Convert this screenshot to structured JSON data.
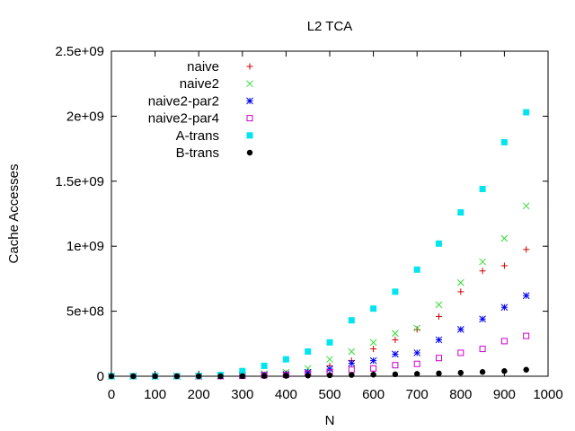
{
  "chart_data": {
    "type": "scatter",
    "title": "L2 TCA",
    "xlabel": "N",
    "ylabel": "Cache Accesses",
    "xlim": [
      0,
      1000
    ],
    "ylim": [
      0,
      2500000000
    ],
    "xticks": [
      0,
      100,
      200,
      300,
      400,
      500,
      600,
      700,
      800,
      900,
      1000
    ],
    "xtick_labels": [
      "0",
      "100",
      "200",
      "300",
      "400",
      "500",
      "600",
      "700",
      "800",
      "900",
      "1000"
    ],
    "yticks": [
      0,
      500000000,
      1000000000,
      1500000000,
      2000000000,
      2500000000
    ],
    "ytick_labels": [
      "0",
      "5e+08",
      "1e+09",
      "1.5e+09",
      "2e+09",
      "2.5e+09"
    ],
    "grid": false,
    "legend_position": "top-left",
    "x": [
      0,
      50,
      100,
      150,
      200,
      250,
      300,
      350,
      400,
      450,
      500,
      550,
      600,
      650,
      700,
      750,
      800,
      850,
      900,
      950
    ],
    "series": [
      {
        "name": "naive",
        "marker": "plus",
        "color": "#cc0000",
        "values": [
          0,
          0,
          0,
          0,
          0,
          2000000,
          5000000,
          10000000,
          20000000,
          40000000,
          80000000,
          120000000,
          210000000,
          280000000,
          360000000,
          460000000,
          650000000,
          810000000,
          850000000,
          975000000
        ]
      },
      {
        "name": "naive2",
        "marker": "cross",
        "color": "#33dd33",
        "values": [
          0,
          0,
          0,
          0,
          0,
          5000000,
          10000000,
          20000000,
          30000000,
          60000000,
          130000000,
          190000000,
          260000000,
          330000000,
          370000000,
          550000000,
          720000000,
          880000000,
          1060000000,
          1310000000
        ]
      },
      {
        "name": "naive2-par2",
        "marker": "star",
        "color": "#0000ee",
        "values": [
          0,
          0,
          0,
          0,
          0,
          2000000,
          5000000,
          10000000,
          15000000,
          30000000,
          55000000,
          100000000,
          120000000,
          170000000,
          180000000,
          280000000,
          360000000,
          440000000,
          530000000,
          620000000
        ]
      },
      {
        "name": "naive2-par4",
        "marker": "open-square",
        "color": "#cc00cc",
        "values": [
          0,
          0,
          0,
          0,
          0,
          1000000,
          3000000,
          7000000,
          10000000,
          20000000,
          30000000,
          50000000,
          60000000,
          85000000,
          95000000,
          140000000,
          180000000,
          210000000,
          270000000,
          310000000
        ]
      },
      {
        "name": "A-trans",
        "marker": "filled-square",
        "color": "#00e5ee",
        "values": [
          0,
          0,
          0,
          0,
          2000000,
          10000000,
          40000000,
          80000000,
          130000000,
          190000000,
          260000000,
          430000000,
          520000000,
          650000000,
          820000000,
          1020000000,
          1260000000,
          1440000000,
          1800000000,
          2030000000
        ]
      },
      {
        "name": "B-trans",
        "marker": "filled-circle",
        "color": "#000000",
        "values": [
          0,
          0,
          0,
          0,
          0,
          0,
          1000000,
          2000000,
          3000000,
          5000000,
          7000000,
          10000000,
          12000000,
          15000000,
          18000000,
          22000000,
          27000000,
          33000000,
          40000000,
          50000000
        ]
      }
    ]
  }
}
